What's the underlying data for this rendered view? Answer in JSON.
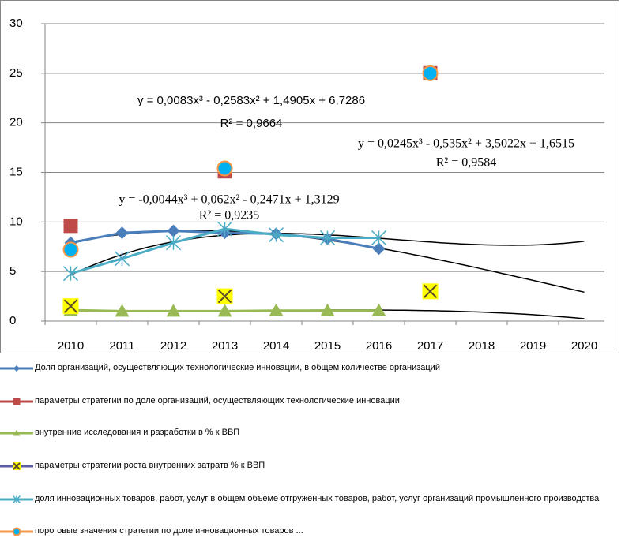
{
  "chart_data": {
    "type": "line",
    "categories": [
      "2010",
      "2011",
      "2012",
      "2013",
      "2014",
      "2015",
      "2016",
      "2017",
      "2018",
      "2019",
      "2020"
    ],
    "ylim": [
      0,
      30
    ],
    "yticks": [
      0,
      5,
      10,
      15,
      20,
      25,
      30
    ],
    "grid": true,
    "series": [
      {
        "name": "Доля организаций, осуществляющих технологические инновации, в общем количестве организаций",
        "color": "#4a7ebb",
        "marker": "diamond",
        "marker_color": "#4a7ebb",
        "values": [
          7.9,
          8.9,
          9.1,
          8.9,
          8.8,
          8.3,
          7.3,
          null,
          null,
          null,
          null
        ]
      },
      {
        "name": "параметры стратегии по доле организаций, осуществляющих технологические инновации",
        "color": "#be4b48",
        "marker": "square",
        "marker_color": "#be4b48",
        "values": [
          9.6,
          null,
          null,
          15.1,
          null,
          null,
          null,
          25,
          null,
          null,
          null
        ]
      },
      {
        "name": "внутренние исследования и разработки в % к ВВП",
        "color": "#98b954",
        "marker": "triangle",
        "marker_color": "#98b954",
        "values": [
          1.1,
          1.0,
          1.0,
          1.0,
          1.05,
          1.05,
          1.05,
          null,
          null,
          null,
          null
        ]
      },
      {
        "name": "параметры стратегии роста внутренних затратв % к ВВП",
        "color": "#5b5ba6",
        "marker": "x",
        "marker_color": "#ffff00",
        "values": [
          1.5,
          null,
          null,
          2.5,
          null,
          null,
          null,
          3.0,
          null,
          null,
          null
        ]
      },
      {
        "name": "доля инновационных товаров, работ, услуг в общем объеме отгруженных товаров, работ, услуг организаций промышленного производства",
        "color": "#4bacc6",
        "marker": "asterisk",
        "marker_color": "#4bacc6",
        "values": [
          4.8,
          6.3,
          7.9,
          9.3,
          8.7,
          8.4,
          8.4,
          null,
          null,
          null,
          null
        ]
      },
      {
        "name": "пороговые значения стратегии по доле инновационных товаров ...",
        "color": "#f79646",
        "marker": "circle",
        "marker_color": "#00b0f0",
        "values": [
          7.2,
          null,
          null,
          15.4,
          null,
          null,
          null,
          25,
          null,
          null,
          null
        ]
      }
    ],
    "trendlines": [
      {
        "equation": "y = 0,0083x³ - 0,2583x² + 1,4905x + 6,7286",
        "r2": "R² = 0,9664",
        "coefficients": [
          0.0083,
          -0.2583,
          1.4905,
          6.7286
        ]
      },
      {
        "equation": "y = 0,0245x³ - 0,535x² + 3,5022x + 1,6515",
        "r2": "R² = 0,9584",
        "coefficients": [
          0.0245,
          -0.535,
          3.5022,
          1.6515
        ]
      },
      {
        "equation": "y = -0,0044x³ + 0,062x² - 0,2471x + 1,3129",
        "r2": "R² = 0,9235",
        "coefficients": [
          -0.0044,
          0.062,
          -0.2471,
          1.3129
        ]
      }
    ]
  }
}
